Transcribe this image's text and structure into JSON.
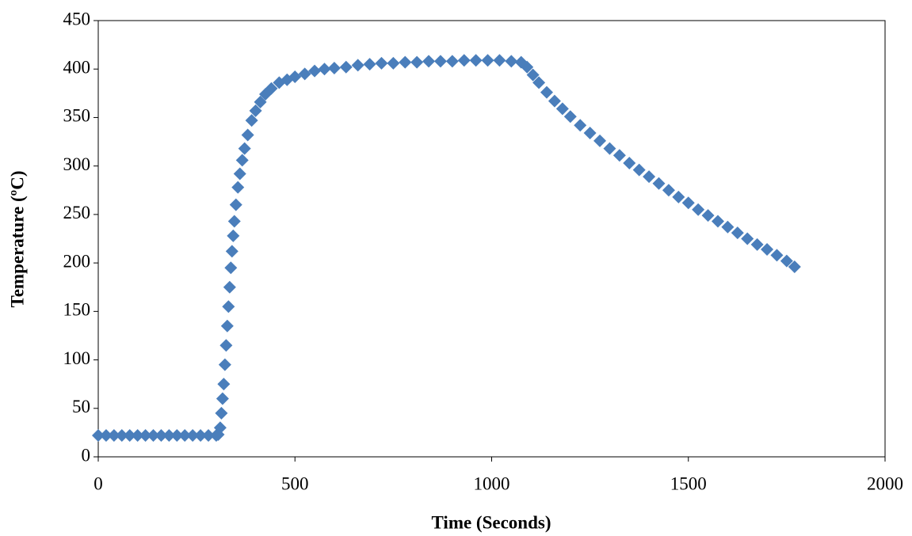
{
  "chart_data": {
    "type": "scatter",
    "x_label": "Time (Seconds)",
    "y_label": "Temperature (ºC)",
    "xlim": [
      0,
      2000
    ],
    "xticks": [
      0,
      500,
      1000,
      1500,
      2000
    ],
    "ylim": [
      0,
      450
    ],
    "yticks": [
      0,
      50,
      100,
      150,
      200,
      250,
      300,
      350,
      400,
      450
    ],
    "grid": false,
    "series": [
      {
        "color": "#4a7ebb",
        "x": [
          0,
          20,
          40,
          60,
          80,
          100,
          120,
          140,
          160,
          180,
          200,
          220,
          240,
          260,
          280,
          300,
          305,
          310,
          313,
          316,
          319,
          322,
          325,
          328,
          331,
          334,
          337,
          340,
          343,
          346,
          350,
          355,
          360,
          366,
          372,
          380,
          390,
          400,
          412,
          425,
          440,
          460,
          480,
          500,
          525,
          550,
          575,
          600,
          630,
          660,
          690,
          720,
          750,
          780,
          810,
          840,
          870,
          900,
          930,
          960,
          990,
          1020,
          1050,
          1075,
          1090,
          1105,
          1120,
          1140,
          1160,
          1180,
          1200,
          1225,
          1250,
          1275,
          1300,
          1325,
          1350,
          1375,
          1400,
          1425,
          1450,
          1475,
          1500,
          1525,
          1550,
          1575,
          1600,
          1625,
          1650,
          1675,
          1700,
          1725,
          1750,
          1770
        ],
        "values": [
          22,
          22,
          22,
          22,
          22,
          22,
          22,
          22,
          22,
          22,
          22,
          22,
          22,
          22,
          22,
          22,
          23,
          30,
          45,
          60,
          75,
          95,
          115,
          135,
          155,
          175,
          195,
          212,
          228,
          243,
          260,
          278,
          292,
          306,
          318,
          332,
          347,
          357,
          366,
          374,
          380,
          386,
          389,
          392,
          395,
          398,
          400,
          401,
          402,
          404,
          405,
          406,
          406,
          407,
          407,
          408,
          408,
          408,
          409,
          409,
          409,
          409,
          408,
          407,
          402,
          394,
          386,
          376,
          367,
          359,
          351,
          342,
          334,
          326,
          318,
          311,
          303,
          296,
          289,
          282,
          275,
          268,
          262,
          255,
          249,
          243,
          237,
          231,
          225,
          219,
          214,
          208,
          202,
          196
        ]
      }
    ]
  }
}
